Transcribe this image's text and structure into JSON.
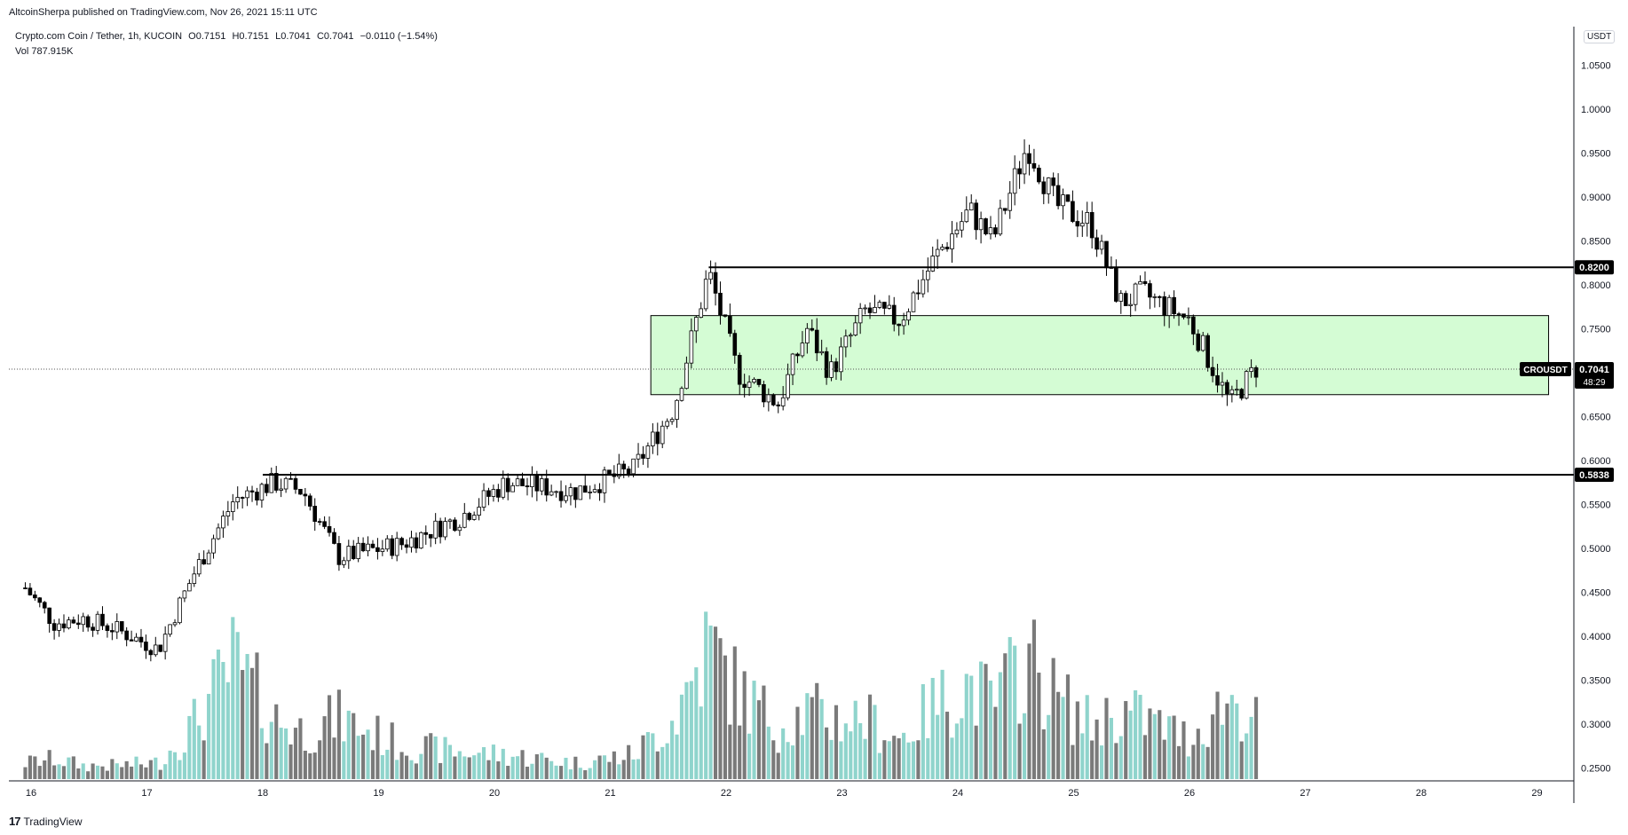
{
  "header": {
    "publisher": "AltcoinSherpa published on TradingView.com, Nov 26, 2021 15:11 UTC",
    "symbol": "Crypto.com Coin / Tether, 1h, KUCOIN",
    "open_label": "O",
    "open": "0.7151",
    "high_label": "H",
    "high": "0.7151",
    "low_label": "L",
    "low": "0.7041",
    "close_label": "C",
    "close": "0.7041",
    "change": "−0.0110 (−1.54%)",
    "vol_label": "Vol",
    "vol_value": "787.915K"
  },
  "footer": {
    "logo_text": "TradingView",
    "logo_mark": "17"
  },
  "price_axis": {
    "currency": "USDT",
    "ticks": [
      "1.0500",
      "1.0000",
      "0.9500",
      "0.9000",
      "0.8500",
      "0.8000",
      "0.7500",
      "0.7000",
      "0.6500",
      "0.6000",
      "0.5500",
      "0.5000",
      "0.4500",
      "0.4000",
      "0.3500",
      "0.3000",
      "0.2500"
    ]
  },
  "time_axis": {
    "ticks": [
      "16",
      "17",
      "18",
      "19",
      "20",
      "21",
      "22",
      "23",
      "24",
      "25",
      "26",
      "27",
      "28",
      "29"
    ]
  },
  "labels": {
    "current_price": "0.7041",
    "countdown": "48:29",
    "ticker": "CROUSDT",
    "level_upper": "0.8200",
    "level_lower": "0.5838"
  },
  "colors": {
    "bull_candle": "#ffffff",
    "bear_candle": "#000000",
    "bull_volume": "#8fd4cc",
    "bear_volume": "#7a7a7a",
    "zone_fill": "#d4fcd4",
    "level_line": "#000000"
  },
  "chart_data": {
    "type": "candlestick",
    "title": "Crypto.com Coin / Tether, 1h, KUCOIN",
    "ylabel": "USDT",
    "ylim": [
      0.23,
      1.07
    ],
    "x_ticks": [
      "16",
      "17",
      "18",
      "19",
      "20",
      "21",
      "22",
      "23",
      "24",
      "25",
      "26",
      "27",
      "28",
      "29"
    ],
    "keypoints": [
      {
        "day": 15.95,
        "price": 0.455,
        "vol": 0.12
      },
      {
        "day": 16.2,
        "price": 0.415,
        "vol": 0.15
      },
      {
        "day": 16.45,
        "price": 0.42,
        "vol": 0.1
      },
      {
        "day": 16.7,
        "price": 0.41,
        "vol": 0.1
      },
      {
        "day": 17.1,
        "price": 0.385,
        "vol": 0.12
      },
      {
        "day": 17.4,
        "price": 0.47,
        "vol": 0.4
      },
      {
        "day": 17.75,
        "price": 0.555,
        "vol": 0.85
      },
      {
        "day": 18.1,
        "price": 0.575,
        "vol": 0.45
      },
      {
        "day": 18.35,
        "price": 0.565,
        "vol": 0.35
      },
      {
        "day": 18.65,
        "price": 0.49,
        "vol": 0.45
      },
      {
        "day": 19.2,
        "price": 0.505,
        "vol": 0.25
      },
      {
        "day": 19.7,
        "price": 0.535,
        "vol": 0.2
      },
      {
        "day": 20.1,
        "price": 0.575,
        "vol": 0.18
      },
      {
        "day": 20.7,
        "price": 0.565,
        "vol": 0.12
      },
      {
        "day": 21.2,
        "price": 0.59,
        "vol": 0.18
      },
      {
        "day": 21.55,
        "price": 0.66,
        "vol": 0.45
      },
      {
        "day": 21.85,
        "price": 0.815,
        "vol": 1.0
      },
      {
        "day": 22.1,
        "price": 0.7,
        "vol": 0.65
      },
      {
        "day": 22.45,
        "price": 0.665,
        "vol": 0.4
      },
      {
        "day": 22.7,
        "price": 0.75,
        "vol": 0.5
      },
      {
        "day": 22.9,
        "price": 0.7,
        "vol": 0.45
      },
      {
        "day": 23.2,
        "price": 0.77,
        "vol": 0.45
      },
      {
        "day": 23.5,
        "price": 0.76,
        "vol": 0.3
      },
      {
        "day": 23.8,
        "price": 0.83,
        "vol": 0.55
      },
      {
        "day": 24.1,
        "price": 0.885,
        "vol": 0.7
      },
      {
        "day": 24.3,
        "price": 0.85,
        "vol": 0.55
      },
      {
        "day": 24.6,
        "price": 0.96,
        "vol": 0.9
      },
      {
        "day": 24.85,
        "price": 0.89,
        "vol": 0.6
      },
      {
        "day": 25.15,
        "price": 0.87,
        "vol": 0.4
      },
      {
        "day": 25.4,
        "price": 0.78,
        "vol": 0.5
      },
      {
        "day": 25.6,
        "price": 0.79,
        "vol": 0.45
      },
      {
        "day": 26.0,
        "price": 0.76,
        "vol": 0.3
      },
      {
        "day": 26.35,
        "price": 0.665,
        "vol": 0.6
      },
      {
        "day": 26.6,
        "price": 0.71,
        "vol": 0.4
      }
    ],
    "levels": [
      0.82,
      0.5838
    ],
    "zone": {
      "from_day": 21.35,
      "to_day": 29.1,
      "low": 0.675,
      "high": 0.765
    },
    "current_price": 0.7041
  }
}
